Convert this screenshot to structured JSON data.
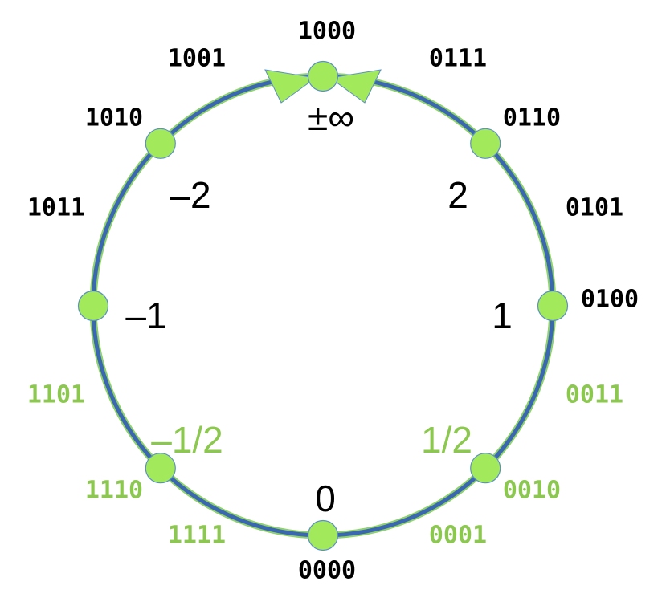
{
  "colors": {
    "ring": "#3a67b0",
    "ring_edge": "#8fd16a",
    "node_fill": "#a2ea5c",
    "node_stroke": "#5b8fc7",
    "label_dark": "#000000",
    "label_green": "#8cc850"
  },
  "ring": {
    "arrow_meeting_label": "1000",
    "arrows_converge_on": "±∞"
  },
  "nodes": [
    {
      "id": "inf",
      "value_label": "±∞",
      "angle_deg": 90
    },
    {
      "id": "two",
      "value_label": "2",
      "angle_deg": 45
    },
    {
      "id": "one",
      "value_label": "1",
      "angle_deg": 0
    },
    {
      "id": "half",
      "value_label": "1/2",
      "angle_deg": -45
    },
    {
      "id": "zero",
      "value_label": "0",
      "angle_deg": -90
    },
    {
      "id": "neg-half",
      "value_label": "–1/2",
      "angle_deg": -135
    },
    {
      "id": "neg-one",
      "value_label": "–1",
      "angle_deg": 180
    },
    {
      "id": "neg-two",
      "value_label": "–2",
      "angle_deg": 135
    }
  ],
  "bit_labels": [
    {
      "text": "1000",
      "color": "dark"
    },
    {
      "text": "0111",
      "color": "dark"
    },
    {
      "text": "0110",
      "color": "dark"
    },
    {
      "text": "0101",
      "color": "dark"
    },
    {
      "text": "0100",
      "color": "dark"
    },
    {
      "text": "0011",
      "color": "green"
    },
    {
      "text": "0010",
      "color": "green"
    },
    {
      "text": "0001",
      "color": "green"
    },
    {
      "text": "0000",
      "color": "dark"
    },
    {
      "text": "1111",
      "color": "green"
    },
    {
      "text": "1110",
      "color": "green"
    },
    {
      "text": "1101",
      "color": "green"
    },
    {
      "text": "1011",
      "color": "dark"
    },
    {
      "text": "1010",
      "color": "dark"
    },
    {
      "text": "1001",
      "color": "dark"
    }
  ],
  "value_colors": {
    "inf": "dark",
    "two": "dark",
    "one": "dark",
    "half": "green",
    "zero": "dark",
    "neg-half": "green",
    "neg-one": "dark",
    "neg-two": "dark"
  }
}
